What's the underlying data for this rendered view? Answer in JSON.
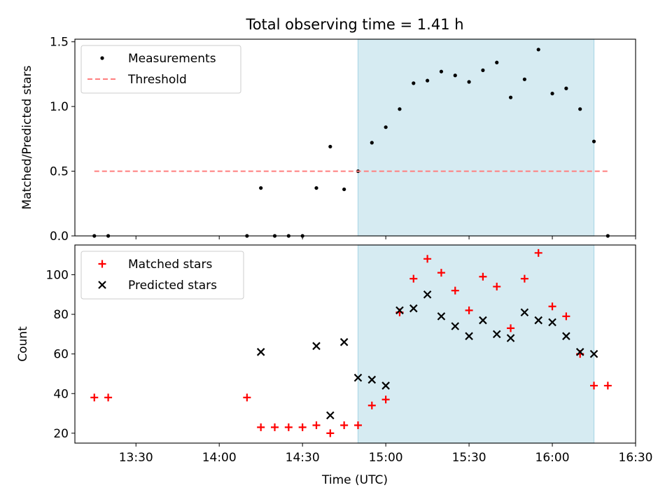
{
  "title": "Total observing time = 1.41 h",
  "x_axis": {
    "label": "Time (UTC)",
    "xlim": [
      "13:08",
      "16:30"
    ],
    "ticks": [
      "13:30",
      "14:00",
      "14:30",
      "15:00",
      "15:30",
      "16:00",
      "16:30"
    ]
  },
  "colors": {
    "highlight": "#add8e6",
    "measurement": "#000000",
    "threshold": "#ff7f7f",
    "matched": "#ff0000",
    "predicted": "#000000"
  },
  "chart_data": [
    {
      "type": "scatter",
      "ylabel": "Matched/Predicted stars",
      "ylim": [
        0,
        1.52
      ],
      "yticks": [
        "0.0",
        "0.5",
        "1.0",
        "1.5"
      ],
      "legend_position": "top-left",
      "highlight_span": [
        "14:50",
        "16:15"
      ],
      "series": [
        {
          "name": "Measurements",
          "marker": "dot",
          "x": [
            "13:15",
            "13:20",
            "14:10",
            "14:15",
            "14:20",
            "14:25",
            "14:30",
            "14:35",
            "14:40",
            "14:45",
            "14:50",
            "14:55",
            "15:00",
            "15:05",
            "15:10",
            "15:15",
            "15:20",
            "15:25",
            "15:30",
            "15:35",
            "15:40",
            "15:45",
            "15:50",
            "15:55",
            "16:00",
            "16:05",
            "16:10",
            "16:15",
            "16:20"
          ],
          "y": [
            0,
            0,
            0,
            0.37,
            0,
            0,
            0,
            0.37,
            0.69,
            0.36,
            0.5,
            0.72,
            0.84,
            0.98,
            1.18,
            1.2,
            1.27,
            1.24,
            1.19,
            1.28,
            1.34,
            1.07,
            1.21,
            1.44,
            1.1,
            1.14,
            0.98,
            0.73,
            0
          ]
        },
        {
          "name": "Threshold",
          "style": "dashed",
          "x": [
            "13:15",
            "16:20"
          ],
          "y": [
            0.5,
            0.5
          ]
        }
      ]
    },
    {
      "type": "scatter",
      "ylabel": "Count",
      "ylim": [
        15,
        115
      ],
      "yticks": [
        "20",
        "40",
        "60",
        "80",
        "100"
      ],
      "legend_position": "top-left",
      "highlight_span": [
        "14:50",
        "16:15"
      ],
      "series": [
        {
          "name": "Matched stars",
          "marker": "plus",
          "x": [
            "13:15",
            "13:20",
            "14:10",
            "14:15",
            "14:20",
            "14:25",
            "14:30",
            "14:35",
            "14:40",
            "14:45",
            "14:50",
            "14:55",
            "15:00",
            "15:05",
            "15:10",
            "15:15",
            "15:20",
            "15:25",
            "15:30",
            "15:35",
            "15:40",
            "15:45",
            "15:50",
            "15:55",
            "16:00",
            "16:05",
            "16:10",
            "16:15",
            "16:20"
          ],
          "y": [
            38,
            38,
            38,
            23,
            23,
            23,
            23,
            24,
            20,
            24,
            24,
            34,
            37,
            81,
            98,
            108,
            101,
            92,
            82,
            99,
            94,
            73,
            98,
            111,
            84,
            79,
            60,
            44,
            44
          ]
        },
        {
          "name": "Predicted stars",
          "marker": "x",
          "x": [
            "14:15",
            "14:35",
            "14:40",
            "14:45",
            "14:50",
            "14:55",
            "15:00",
            "15:05",
            "15:10",
            "15:15",
            "15:20",
            "15:25",
            "15:30",
            "15:35",
            "15:40",
            "15:45",
            "15:50",
            "15:55",
            "16:00",
            "16:05",
            "16:10",
            "16:15"
          ],
          "y": [
            61,
            64,
            29,
            66,
            48,
            47,
            44,
            82,
            83,
            90,
            79,
            74,
            69,
            77,
            70,
            68,
            81,
            77,
            76,
            69,
            61,
            60
          ]
        }
      ]
    }
  ]
}
